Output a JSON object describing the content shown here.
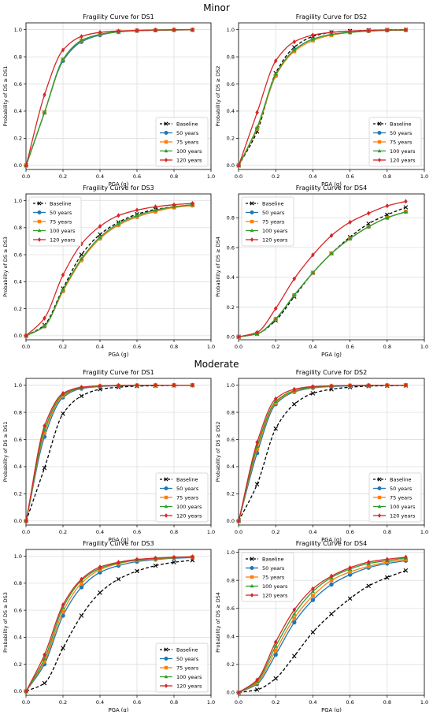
{
  "page": {
    "group_titles": [
      "Minor",
      "Moderate"
    ]
  },
  "colors": {
    "Baseline": "#000000",
    "50 years": "#1f77b4",
    "75 years": "#ff7f0e",
    "100 years": "#2ca02c",
    "120 years": "#d62728"
  },
  "chart_data": [
    {
      "type": "line",
      "group": "Minor",
      "title": "Fragility Curve for DS1",
      "xlabel": "PGA (g)",
      "ylabel": "Probability of DS ≥ DS1",
      "xlim": [
        0,
        1
      ],
      "ylim": [
        -0.03,
        1.05
      ],
      "xticks": [
        "0.0",
        "0.2",
        "0.4",
        "0.6",
        "0.8",
        "1.0"
      ],
      "yticks": [
        "0.0",
        "0.2",
        "0.4",
        "0.6",
        "0.8",
        "1.0"
      ],
      "grid": true,
      "legend_position": "lower-right",
      "x": [
        0.001,
        0.1,
        0.2,
        0.3,
        0.4,
        0.5,
        0.6,
        0.7,
        0.8,
        0.9
      ],
      "series": [
        {
          "name": "Baseline",
          "marker": "x",
          "dashed": true,
          "values": [
            0.0,
            0.39,
            0.78,
            0.92,
            0.965,
            0.985,
            0.993,
            0.996,
            0.998,
            0.999
          ]
        },
        {
          "name": "50 years",
          "marker": "o",
          "dashed": false,
          "values": [
            0.0,
            0.39,
            0.77,
            0.91,
            0.96,
            0.983,
            0.992,
            0.996,
            0.998,
            0.999
          ]
        },
        {
          "name": "75 years",
          "marker": "s",
          "dashed": false,
          "values": [
            0.0,
            0.39,
            0.78,
            0.92,
            0.965,
            0.985,
            0.993,
            0.996,
            0.998,
            0.999
          ]
        },
        {
          "name": "100 years",
          "marker": "^",
          "dashed": false,
          "values": [
            0.0,
            0.39,
            0.78,
            0.92,
            0.965,
            0.985,
            0.993,
            0.996,
            0.998,
            0.999
          ]
        },
        {
          "name": "120 years",
          "marker": "d",
          "dashed": false,
          "values": [
            0.0,
            0.52,
            0.85,
            0.95,
            0.98,
            0.99,
            0.995,
            0.998,
            0.999,
            0.999
          ]
        }
      ]
    },
    {
      "type": "line",
      "group": "Minor",
      "title": "Fragility Curve for DS2",
      "xlabel": "PGA (g)",
      "ylabel": "Probability of DS ≥ DS2",
      "xlim": [
        0,
        1
      ],
      "ylim": [
        -0.03,
        1.05
      ],
      "xticks": [
        "0.0",
        "0.2",
        "0.4",
        "0.6",
        "0.8",
        "1.0"
      ],
      "yticks": [
        "0.0",
        "0.2",
        "0.4",
        "0.6",
        "0.8",
        "1.0"
      ],
      "grid": true,
      "legend_position": "lower-right",
      "x": [
        0.001,
        0.1,
        0.2,
        0.3,
        0.4,
        0.5,
        0.6,
        0.7,
        0.8,
        0.9
      ],
      "series": [
        {
          "name": "Baseline",
          "marker": "x",
          "dashed": true,
          "values": [
            0.0,
            0.25,
            0.68,
            0.87,
            0.95,
            0.98,
            0.99,
            0.995,
            0.998,
            0.999
          ]
        },
        {
          "name": "50 years",
          "marker": "o",
          "dashed": false,
          "values": [
            0.0,
            0.27,
            0.66,
            0.85,
            0.93,
            0.965,
            0.98,
            0.99,
            0.995,
            0.997
          ]
        },
        {
          "name": "75 years",
          "marker": "s",
          "dashed": false,
          "values": [
            0.0,
            0.27,
            0.66,
            0.84,
            0.92,
            0.96,
            0.98,
            0.99,
            0.995,
            0.997
          ]
        },
        {
          "name": "100 years",
          "marker": "^",
          "dashed": false,
          "values": [
            0.0,
            0.28,
            0.67,
            0.85,
            0.93,
            0.965,
            0.98,
            0.99,
            0.995,
            0.997
          ]
        },
        {
          "name": "120 years",
          "marker": "d",
          "dashed": false,
          "values": [
            0.0,
            0.39,
            0.77,
            0.91,
            0.96,
            0.98,
            0.99,
            0.995,
            0.998,
            0.999
          ]
        }
      ]
    },
    {
      "type": "line",
      "group": "Minor",
      "title": "Fragility Curve for DS3",
      "xlabel": "PGA (g)",
      "ylabel": "Probability of DS ≥ DS3",
      "xlim": [
        0,
        1
      ],
      "ylim": [
        -0.03,
        1.05
      ],
      "xticks": [
        "0.0",
        "0.2",
        "0.4",
        "0.6",
        "0.8",
        "1.0"
      ],
      "yticks": [
        "0.0",
        "0.2",
        "0.4",
        "0.6",
        "0.8",
        "1.0"
      ],
      "grid": true,
      "legend_position": "upper-left",
      "x": [
        0.001,
        0.1,
        0.2,
        0.3,
        0.4,
        0.5,
        0.6,
        0.7,
        0.8,
        0.9
      ],
      "series": [
        {
          "name": "Baseline",
          "marker": "x",
          "dashed": true,
          "values": [
            0.0,
            0.08,
            0.35,
            0.6,
            0.75,
            0.84,
            0.9,
            0.935,
            0.955,
            0.97
          ]
        },
        {
          "name": "50 years",
          "marker": "o",
          "dashed": false,
          "values": [
            0.0,
            0.07,
            0.33,
            0.56,
            0.72,
            0.82,
            0.88,
            0.92,
            0.95,
            0.965
          ]
        },
        {
          "name": "75 years",
          "marker": "s",
          "dashed": false,
          "values": [
            0.0,
            0.07,
            0.33,
            0.56,
            0.72,
            0.82,
            0.88,
            0.92,
            0.95,
            0.965
          ]
        },
        {
          "name": "100 years",
          "marker": "^",
          "dashed": false,
          "values": [
            0.0,
            0.07,
            0.34,
            0.57,
            0.73,
            0.83,
            0.89,
            0.93,
            0.955,
            0.97
          ]
        },
        {
          "name": "120 years",
          "marker": "d",
          "dashed": false,
          "values": [
            0.0,
            0.13,
            0.45,
            0.68,
            0.81,
            0.89,
            0.93,
            0.955,
            0.97,
            0.98
          ]
        }
      ]
    },
    {
      "type": "line",
      "group": "Minor",
      "title": "Fragility Curve for DS4",
      "xlabel": "PGA (g)",
      "ylabel": "Probability of DS ≥ DS4",
      "xlim": [
        0,
        1
      ],
      "ylim": [
        -0.02,
        0.96
      ],
      "xticks": [
        "0.0",
        "0.2",
        "0.4",
        "0.6",
        "0.8",
        "1.0"
      ],
      "yticks": [
        "0.0",
        "0.2",
        "0.4",
        "0.6",
        "0.8"
      ],
      "grid": true,
      "legend_position": "upper-left",
      "x": [
        0.001,
        0.1,
        0.2,
        0.3,
        0.4,
        0.5,
        0.6,
        0.7,
        0.8,
        0.9
      ],
      "series": [
        {
          "name": "Baseline",
          "marker": "x",
          "dashed": true,
          "values": [
            0.0,
            0.02,
            0.11,
            0.27,
            0.43,
            0.56,
            0.67,
            0.76,
            0.82,
            0.87
          ]
        },
        {
          "name": "50 years",
          "marker": "o",
          "dashed": false,
          "values": [
            0.0,
            0.02,
            0.12,
            0.28,
            0.43,
            0.56,
            0.66,
            0.74,
            0.8,
            0.84
          ]
        },
        {
          "name": "75 years",
          "marker": "s",
          "dashed": false,
          "values": [
            0.0,
            0.02,
            0.12,
            0.28,
            0.43,
            0.56,
            0.66,
            0.74,
            0.8,
            0.84
          ]
        },
        {
          "name": "100 years",
          "marker": "^",
          "dashed": false,
          "values": [
            0.0,
            0.02,
            0.12,
            0.28,
            0.43,
            0.56,
            0.66,
            0.74,
            0.8,
            0.84
          ]
        },
        {
          "name": "120 years",
          "marker": "d",
          "dashed": false,
          "values": [
            0.0,
            0.03,
            0.19,
            0.39,
            0.55,
            0.68,
            0.77,
            0.83,
            0.88,
            0.91
          ]
        }
      ]
    },
    {
      "type": "line",
      "group": "Moderate",
      "title": "Fragility Curve for DS1",
      "xlabel": "PGA (g)",
      "ylabel": "Probability of DS ≥ DS1",
      "xlim": [
        0,
        1
      ],
      "ylim": [
        -0.03,
        1.05
      ],
      "xticks": [
        "0.0",
        "0.2",
        "0.4",
        "0.6",
        "0.8",
        "1.0"
      ],
      "yticks": [
        "0.0",
        "0.2",
        "0.4",
        "0.6",
        "0.8",
        "1.0"
      ],
      "grid": true,
      "legend_position": "lower-right",
      "x": [
        0.001,
        0.1,
        0.2,
        0.3,
        0.4,
        0.5,
        0.6,
        0.7,
        0.8,
        0.9
      ],
      "series": [
        {
          "name": "Baseline",
          "marker": "x",
          "dashed": true,
          "values": [
            0.0,
            0.39,
            0.79,
            0.92,
            0.97,
            0.985,
            0.993,
            0.996,
            0.998,
            0.999
          ]
        },
        {
          "name": "50 years",
          "marker": "o",
          "dashed": false,
          "values": [
            0.0,
            0.62,
            0.91,
            0.975,
            0.99,
            0.996,
            0.998,
            0.999,
            1.0,
            1.0
          ]
        },
        {
          "name": "75 years",
          "marker": "s",
          "dashed": false,
          "values": [
            0.0,
            0.65,
            0.92,
            0.98,
            0.993,
            0.997,
            0.999,
            1.0,
            1.0,
            1.0
          ]
        },
        {
          "name": "100 years",
          "marker": "^",
          "dashed": false,
          "values": [
            0.0,
            0.67,
            0.93,
            0.98,
            0.994,
            0.998,
            0.999,
            1.0,
            1.0,
            1.0
          ]
        },
        {
          "name": "120 years",
          "marker": "d",
          "dashed": false,
          "values": [
            0.0,
            0.7,
            0.94,
            0.985,
            0.995,
            0.998,
            0.999,
            1.0,
            1.0,
            1.0
          ]
        }
      ]
    },
    {
      "type": "line",
      "group": "Moderate",
      "title": "Fragility Curve for DS2",
      "xlabel": "PGA (g)",
      "ylabel": "Probability of DS ≥ DS2",
      "xlim": [
        0,
        1
      ],
      "ylim": [
        -0.03,
        1.05
      ],
      "xticks": [
        "0.0",
        "0.2",
        "0.4",
        "0.6",
        "0.8",
        "1.0"
      ],
      "yticks": [
        "0.0",
        "0.2",
        "0.4",
        "0.6",
        "0.8",
        "1.0"
      ],
      "grid": true,
      "legend_position": "lower-right",
      "x": [
        0.001,
        0.1,
        0.2,
        0.3,
        0.4,
        0.5,
        0.6,
        0.7,
        0.8,
        0.9
      ],
      "series": [
        {
          "name": "Baseline",
          "marker": "x",
          "dashed": true,
          "values": [
            0.0,
            0.27,
            0.68,
            0.86,
            0.94,
            0.97,
            0.985,
            0.993,
            0.996,
            0.998
          ]
        },
        {
          "name": "50 years",
          "marker": "o",
          "dashed": false,
          "values": [
            0.0,
            0.5,
            0.86,
            0.95,
            0.98,
            0.99,
            0.995,
            0.998,
            0.999,
            1.0
          ]
        },
        {
          "name": "75 years",
          "marker": "s",
          "dashed": false,
          "values": [
            0.0,
            0.53,
            0.87,
            0.955,
            0.983,
            0.993,
            0.997,
            0.998,
            0.999,
            1.0
          ]
        },
        {
          "name": "100 years",
          "marker": "^",
          "dashed": false,
          "values": [
            0.0,
            0.55,
            0.88,
            0.96,
            0.985,
            0.994,
            0.997,
            0.999,
            1.0,
            1.0
          ]
        },
        {
          "name": "120 years",
          "marker": "d",
          "dashed": false,
          "values": [
            0.0,
            0.58,
            0.9,
            0.97,
            0.99,
            0.995,
            0.998,
            0.999,
            1.0,
            1.0
          ]
        }
      ]
    },
    {
      "type": "line",
      "group": "Moderate",
      "title": "Fragility Curve for DS3",
      "xlabel": "PGA (g)",
      "ylabel": "Probability of DS ≥ DS3",
      "xlim": [
        0,
        1
      ],
      "ylim": [
        -0.03,
        1.05
      ],
      "xticks": [
        "0.0",
        "0.2",
        "0.4",
        "0.6",
        "0.8",
        "1.0"
      ],
      "yticks": [
        "0.0",
        "0.2",
        "0.4",
        "0.6",
        "0.8",
        "1.0"
      ],
      "grid": true,
      "legend_position": "lower-right",
      "x": [
        0.001,
        0.1,
        0.2,
        0.3,
        0.4,
        0.5,
        0.6,
        0.7,
        0.8,
        0.9
      ],
      "series": [
        {
          "name": "Baseline",
          "marker": "x",
          "dashed": true,
          "values": [
            0.0,
            0.06,
            0.32,
            0.56,
            0.73,
            0.83,
            0.89,
            0.93,
            0.955,
            0.97
          ]
        },
        {
          "name": "50 years",
          "marker": "o",
          "dashed": false,
          "values": [
            0.0,
            0.2,
            0.56,
            0.77,
            0.88,
            0.93,
            0.96,
            0.975,
            0.985,
            0.99
          ]
        },
        {
          "name": "75 years",
          "marker": "s",
          "dashed": false,
          "values": [
            0.0,
            0.22,
            0.59,
            0.8,
            0.9,
            0.945,
            0.97,
            0.98,
            0.988,
            0.993
          ]
        },
        {
          "name": "100 years",
          "marker": "^",
          "dashed": false,
          "values": [
            0.0,
            0.24,
            0.62,
            0.82,
            0.91,
            0.95,
            0.973,
            0.984,
            0.99,
            0.995
          ]
        },
        {
          "name": "120 years",
          "marker": "d",
          "dashed": false,
          "values": [
            0.0,
            0.27,
            0.64,
            0.83,
            0.92,
            0.955,
            0.976,
            0.986,
            0.992,
            0.996
          ]
        }
      ]
    },
    {
      "type": "line",
      "group": "Moderate",
      "title": "Fragility Curve for DS4",
      "xlabel": "PGA (g)",
      "ylabel": "Probability of DS ≥ DS4",
      "xlim": [
        0,
        1
      ],
      "ylim": [
        -0.02,
        1.02
      ],
      "xticks": [
        "0.0",
        "0.2",
        "0.4",
        "0.6",
        "0.8",
        "1.0"
      ],
      "yticks": [
        "0.0",
        "0.2",
        "0.4",
        "0.6",
        "0.8",
        "1.0"
      ],
      "grid": true,
      "legend_position": "upper-left",
      "x": [
        0.001,
        0.1,
        0.2,
        0.3,
        0.4,
        0.5,
        0.6,
        0.7,
        0.8,
        0.9
      ],
      "series": [
        {
          "name": "Baseline",
          "marker": "x",
          "dashed": true,
          "values": [
            0.0,
            0.02,
            0.1,
            0.26,
            0.43,
            0.56,
            0.67,
            0.76,
            0.82,
            0.87
          ]
        },
        {
          "name": "50 years",
          "marker": "o",
          "dashed": false,
          "values": [
            0.0,
            0.06,
            0.27,
            0.5,
            0.66,
            0.77,
            0.84,
            0.89,
            0.92,
            0.94
          ]
        },
        {
          "name": "75 years",
          "marker": "s",
          "dashed": false,
          "values": [
            0.0,
            0.07,
            0.3,
            0.53,
            0.69,
            0.8,
            0.86,
            0.9,
            0.93,
            0.95
          ]
        },
        {
          "name": "100 years",
          "marker": "^",
          "dashed": false,
          "values": [
            0.0,
            0.08,
            0.33,
            0.56,
            0.72,
            0.82,
            0.88,
            0.92,
            0.94,
            0.96
          ]
        },
        {
          "name": "120 years",
          "marker": "d",
          "dashed": false,
          "values": [
            0.0,
            0.09,
            0.36,
            0.59,
            0.74,
            0.83,
            0.89,
            0.93,
            0.95,
            0.965
          ]
        }
      ]
    }
  ]
}
